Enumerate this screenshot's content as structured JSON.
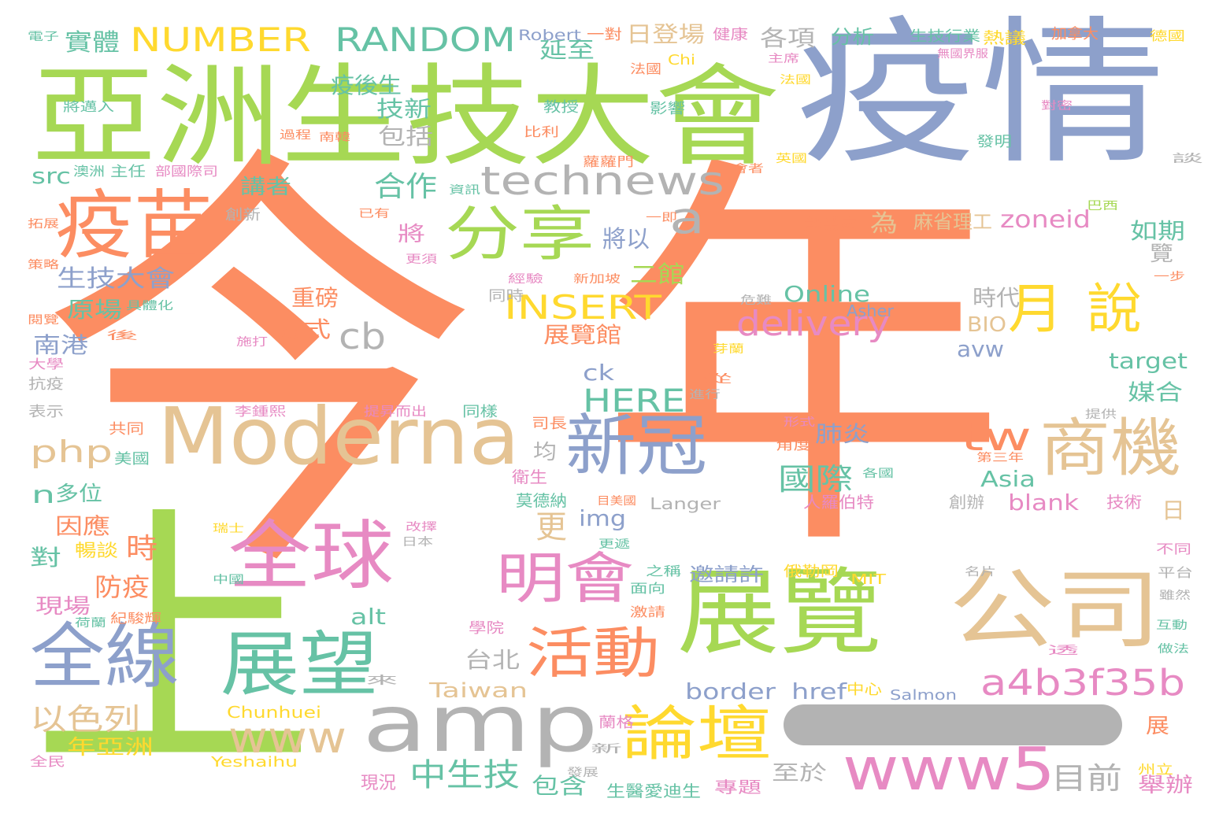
{
  "cloud": {
    "palette": {
      "orange": "#fc8d62",
      "green": "#a6d854",
      "blue": "#8da0cb",
      "pink": "#e78ac3",
      "teal": "#66c2a5",
      "yellow": "#ffd92f",
      "tan": "#e5c494",
      "gray": "#b3b3b3"
    },
    "words": [
      {
        "text": "今",
        "color": "orange"
      },
      {
        "text": "年",
        "color": "orange"
      },
      {
        "text": "上",
        "color": "green"
      },
      {
        "text": "疫情",
        "color": "blue"
      },
      {
        "text": "亞洲生技大會",
        "color": "green"
      },
      {
        "text": "Moderna",
        "color": "tan"
      },
      {
        "text": "amp",
        "color": "gray"
      },
      {
        "text": "展覽",
        "color": "green"
      },
      {
        "text": "公司",
        "color": "tan"
      },
      {
        "text": "疫苗",
        "color": "orange"
      },
      {
        "text": "全球",
        "color": "pink"
      },
      {
        "text": "展望",
        "color": "teal"
      },
      {
        "text": "全線",
        "color": "blue"
      },
      {
        "text": "分享",
        "color": "green"
      },
      {
        "text": "新冠",
        "color": "blue"
      },
      {
        "text": "商機",
        "color": "tan"
      },
      {
        "text": "明會",
        "color": "pink"
      },
      {
        "text": "活動",
        "color": "orange"
      },
      {
        "text": "論壇",
        "color": "yellow"
      },
      {
        "text": "www5",
        "color": "pink"
      },
      {
        "text": "technews",
        "color": "gray"
      },
      {
        "text": "月",
        "color": "yellow"
      },
      {
        "text": "說",
        "color": "yellow"
      },
      {
        "text": "www",
        "color": "tan"
      },
      {
        "text": "a4b3f35b",
        "color": "pink"
      },
      {
        "text": "NUMBER",
        "color": "yellow"
      },
      {
        "text": "RANDOM",
        "color": "teal"
      },
      {
        "text": "INSERT",
        "color": "yellow"
      },
      {
        "text": "delivery",
        "color": "pink"
      },
      {
        "text": "HERE",
        "color": "teal"
      },
      {
        "text": "cb",
        "color": "gray"
      },
      {
        "text": "a",
        "color": "gray"
      },
      {
        "text": "tw",
        "color": "orange"
      },
      {
        "text": "合作",
        "color": "teal"
      },
      {
        "text": "中生技",
        "color": "teal"
      },
      {
        "text": "目前",
        "color": "gray"
      },
      {
        "text": "php",
        "color": "tan"
      },
      {
        "text": "生技大會",
        "color": "blue"
      },
      {
        "text": "國際",
        "color": "teal"
      },
      {
        "text": "以色列",
        "color": "tan"
      },
      {
        "text": "實體",
        "color": "teal"
      },
      {
        "text": "src",
        "color": "teal"
      },
      {
        "text": "zoneid",
        "color": "pink"
      },
      {
        "text": "border",
        "color": "blue"
      },
      {
        "text": "Online",
        "color": "teal"
      },
      {
        "text": "日登場",
        "color": "tan"
      },
      {
        "text": "延至",
        "color": "teal"
      },
      {
        "text": "疫後生",
        "color": "teal"
      },
      {
        "text": "技新",
        "color": "teal"
      },
      {
        "text": "包括",
        "color": "gray"
      },
      {
        "text": "各項",
        "color": "gray"
      },
      {
        "text": "分析",
        "color": "teal"
      },
      {
        "text": "講者",
        "color": "teal"
      },
      {
        "text": "將",
        "color": "pink"
      },
      {
        "text": "將以",
        "color": "blue"
      },
      {
        "text": "二館",
        "color": "green"
      },
      {
        "text": "為",
        "color": "tan"
      },
      {
        "text": "麻省理工",
        "color": "tan"
      },
      {
        "text": "如期",
        "color": "teal"
      },
      {
        "text": "覽",
        "color": "gray"
      },
      {
        "text": "時代",
        "color": "gray"
      },
      {
        "text": "BIO",
        "color": "tan"
      },
      {
        "text": "avw",
        "color": "blue"
      },
      {
        "text": "target",
        "color": "teal"
      },
      {
        "text": "媒合",
        "color": "teal"
      },
      {
        "text": "重磅",
        "color": "orange"
      },
      {
        "text": "方式",
        "color": "orange"
      },
      {
        "text": "展覽館",
        "color": "orange"
      },
      {
        "text": "原場",
        "color": "teal"
      },
      {
        "text": "南港",
        "color": "blue"
      },
      {
        "text": "ck",
        "color": "blue"
      },
      {
        "text": "n",
        "color": "teal"
      },
      {
        "text": "多位",
        "color": "teal"
      },
      {
        "text": "因應",
        "color": "orange"
      },
      {
        "text": "時",
        "color": "orange"
      },
      {
        "text": "對",
        "color": "teal"
      },
      {
        "text": "防疫",
        "color": "orange"
      },
      {
        "text": "暢談",
        "color": "yellow"
      },
      {
        "text": "現場",
        "color": "pink"
      },
      {
        "text": "更",
        "color": "tan"
      },
      {
        "text": "img",
        "color": "blue"
      },
      {
        "text": "均",
        "color": "gray"
      },
      {
        "text": "肺炎",
        "color": "blue"
      },
      {
        "text": "Asia",
        "color": "teal"
      },
      {
        "text": "blank",
        "color": "pink"
      },
      {
        "text": "日",
        "color": "tan"
      },
      {
        "text": "台北",
        "color": "gray"
      },
      {
        "text": "Taiwan",
        "color": "tan"
      },
      {
        "text": "邀請許",
        "color": "blue"
      },
      {
        "text": "alt",
        "color": "teal"
      },
      {
        "text": "href",
        "color": "blue"
      },
      {
        "text": "至於",
        "color": "gray"
      },
      {
        "text": "包含",
        "color": "teal"
      },
      {
        "text": "年亞洲",
        "color": "yellow"
      },
      {
        "text": "舉辦",
        "color": "pink"
      },
      {
        "text": "展",
        "color": "orange"
      },
      {
        "text": "Chunhuei",
        "color": "yellow"
      },
      {
        "text": "Yeshaihu",
        "color": "yellow"
      },
      {
        "text": "現況",
        "color": "pink"
      },
      {
        "text": "生醫愛迪生",
        "color": "teal"
      },
      {
        "text": "專題",
        "color": "pink"
      },
      {
        "text": "Salmon",
        "color": "blue"
      },
      {
        "text": "中心",
        "color": "yellow"
      },
      {
        "text": "Robert",
        "color": "blue"
      },
      {
        "text": "一對",
        "color": "orange"
      },
      {
        "text": "健康",
        "color": "pink"
      },
      {
        "text": "生技行業",
        "color": "teal"
      },
      {
        "text": "熱議",
        "color": "yellow"
      },
      {
        "text": "加拿大",
        "color": "orange"
      },
      {
        "text": "德國",
        "color": "yellow"
      },
      {
        "text": "電子",
        "color": "teal"
      },
      {
        "text": "法國",
        "color": "orange"
      },
      {
        "text": "主席",
        "color": "pink"
      },
      {
        "text": "無國界服",
        "color": "pink"
      },
      {
        "text": "教授",
        "color": "teal"
      },
      {
        "text": "影響",
        "color": "teal"
      },
      {
        "text": "比利",
        "color": "orange"
      },
      {
        "text": "蘿蘿門",
        "color": "orange"
      },
      {
        "text": "發明",
        "color": "teal"
      },
      {
        "text": "英國",
        "color": "yellow"
      },
      {
        "text": "創新",
        "color": "gray"
      },
      {
        "text": "創業家",
        "color": "orange"
      },
      {
        "text": "巴西",
        "color": "green"
      },
      {
        "text": "一步",
        "color": "orange"
      },
      {
        "text": "經驗",
        "color": "pink"
      },
      {
        "text": "新加坡",
        "color": "orange"
      },
      {
        "text": "同時",
        "color": "gray"
      },
      {
        "text": "危難",
        "color": "gray"
      },
      {
        "text": "Asher",
        "color": "blue"
      },
      {
        "text": "施打",
        "color": "pink"
      },
      {
        "text": "芽蘭",
        "color": "yellow"
      },
      {
        "text": "提供",
        "color": "gray"
      },
      {
        "text": "共同",
        "color": "orange"
      },
      {
        "text": "美國",
        "color": "teal"
      },
      {
        "text": "衛生",
        "color": "pink"
      },
      {
        "text": "莫德納",
        "color": "teal"
      },
      {
        "text": "人羅伯特",
        "color": "pink"
      },
      {
        "text": "創辦",
        "color": "gray"
      },
      {
        "text": "技術",
        "color": "pink"
      },
      {
        "text": "Langer",
        "color": "gray"
      },
      {
        "text": "目美國",
        "color": "orange"
      },
      {
        "text": "MIT",
        "color": "yellow"
      },
      {
        "text": "俄勒岡",
        "color": "yellow"
      },
      {
        "text": "之稱",
        "color": "teal"
      },
      {
        "text": "面向",
        "color": "teal"
      },
      {
        "text": "激請",
        "color": "orange"
      },
      {
        "text": "紀駿輝",
        "color": "orange"
      },
      {
        "text": "荷蘭",
        "color": "teal"
      },
      {
        "text": "學院",
        "color": "pink"
      },
      {
        "text": "蘭格",
        "color": "pink"
      },
      {
        "text": "中國",
        "color": "teal"
      },
      {
        "text": "瑞士",
        "color": "yellow"
      },
      {
        "text": "全民",
        "color": "pink"
      },
      {
        "text": "州立",
        "color": "yellow"
      },
      {
        "text": "抗疫",
        "color": "gray"
      },
      {
        "text": "表示",
        "color": "gray"
      },
      {
        "text": "大學",
        "color": "pink"
      },
      {
        "text": "策略",
        "color": "orange"
      },
      {
        "text": "閱覽",
        "color": "orange"
      },
      {
        "text": "拓展",
        "color": "orange"
      },
      {
        "text": "澳洲",
        "color": "teal"
      },
      {
        "text": "主任",
        "color": "teal"
      },
      {
        "text": "部國際司",
        "color": "pink"
      },
      {
        "text": "將邁入",
        "color": "teal"
      },
      {
        "text": "過程",
        "color": "orange"
      },
      {
        "text": "南韓",
        "color": "orange"
      },
      {
        "text": "資訊",
        "color": "teal"
      },
      {
        "text": "已有",
        "color": "orange"
      },
      {
        "text": "更須",
        "color": "pink"
      },
      {
        "text": "一即",
        "color": "orange"
      },
      {
        "text": "具體化",
        "color": "teal"
      },
      {
        "text": "後",
        "color": "orange"
      },
      {
        "text": "李鍾熙",
        "color": "pink"
      },
      {
        "text": "提昇而出",
        "color": "pink"
      },
      {
        "text": "同樣",
        "color": "teal"
      },
      {
        "text": "司長",
        "color": "orange"
      },
      {
        "text": "Chi",
        "color": "yellow"
      },
      {
        "text": "形式",
        "color": "pink"
      },
      {
        "text": "角度",
        "color": "orange"
      },
      {
        "text": "第三年",
        "color": "orange"
      },
      {
        "text": "各國",
        "color": "teal"
      },
      {
        "text": "改擇",
        "color": "pink"
      },
      {
        "text": "日本",
        "color": "gray"
      },
      {
        "text": "更遞",
        "color": "teal"
      },
      {
        "text": "名片",
        "color": "gray"
      },
      {
        "text": "平台",
        "color": "gray"
      },
      {
        "text": "雖然",
        "color": "gray"
      },
      {
        "text": "互動",
        "color": "teal"
      },
      {
        "text": "做法",
        "color": "teal"
      },
      {
        "text": "不同",
        "color": "pink"
      },
      {
        "text": "會者",
        "color": "orange"
      },
      {
        "text": "進行",
        "color": "gray"
      },
      {
        "text": "從",
        "color": "orange"
      },
      {
        "text": "新",
        "color": "gray"
      },
      {
        "text": "發展",
        "color": "gray"
      },
      {
        "text": "來",
        "color": "gray"
      },
      {
        "text": "談",
        "color": "gray"
      },
      {
        "text": "法國",
        "color": "yellow"
      },
      {
        "text": "對密",
        "color": "pink"
      },
      {
        "text": "透",
        "color": "pink"
      }
    ]
  }
}
